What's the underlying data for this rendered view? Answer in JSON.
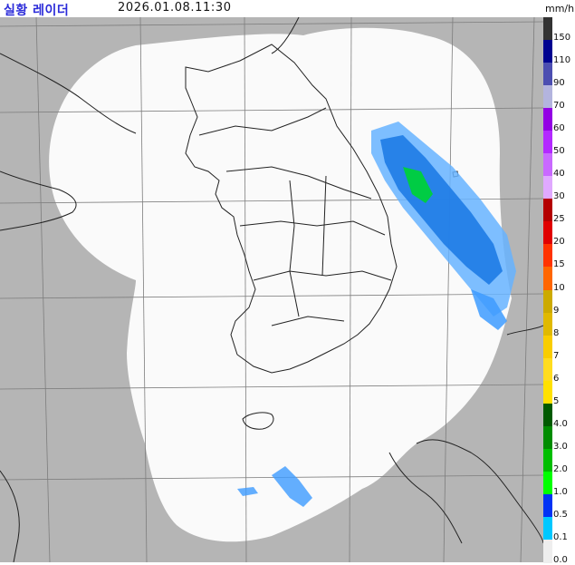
{
  "header": {
    "title": "실황 레이더",
    "timestamp": "2026.01.08.11:30",
    "unit": "mm/h"
  },
  "legend": [
    {
      "label": "150",
      "color": "#333333"
    },
    {
      "label": "110",
      "color": "#000390"
    },
    {
      "label": "90",
      "color": "#4c4eb1"
    },
    {
      "label": "70",
      "color": "#b3b4de"
    },
    {
      "label": "60",
      "color": "#9300e4"
    },
    {
      "label": "50",
      "color": "#b329ff"
    },
    {
      "label": "40",
      "color": "#c969ff"
    },
    {
      "label": "30",
      "color": "#e0a9ff"
    },
    {
      "label": "25",
      "color": "#b40000"
    },
    {
      "label": "20",
      "color": "#e00000"
    },
    {
      "label": "15",
      "color": "#ff3300"
    },
    {
      "label": "10",
      "color": "#ff6600"
    },
    {
      "label": "9",
      "color": "#ccaa00"
    },
    {
      "label": "8",
      "color": "#e0b900"
    },
    {
      "label": "7",
      "color": "#f9cd00"
    },
    {
      "label": "6",
      "color": "#ffdc1f"
    },
    {
      "label": "5",
      "color": "#ffe100"
    },
    {
      "label": "4.0",
      "color": "#005a00"
    },
    {
      "label": "3.0",
      "color": "#008c00"
    },
    {
      "label": "2.0",
      "color": "#00be00"
    },
    {
      "label": "1.0",
      "color": "#00ff00"
    },
    {
      "label": "0.5",
      "color": "#0033f5"
    },
    {
      "label": "0.1",
      "color": "#00c8ff"
    },
    {
      "label": "0.0",
      "color": "#eeeeee"
    }
  ],
  "colors": {
    "background_outside_coverage": "#b5b5b5",
    "coverage_area": "#fafafa",
    "coastline": "#222222",
    "grid": "#7d7d7d"
  }
}
